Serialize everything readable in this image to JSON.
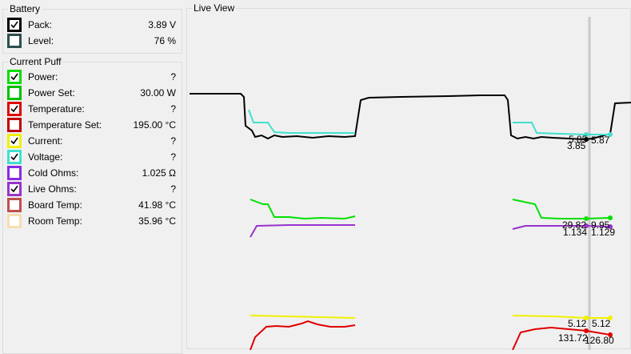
{
  "battery": {
    "title": "Battery",
    "rows": [
      {
        "label": "Pack:",
        "value": "3.89 V",
        "color": "#000000",
        "checked": true
      },
      {
        "label": "Level:",
        "value": "76 %",
        "color": "#2f4f4f",
        "checked": false
      }
    ]
  },
  "current_puff": {
    "title": "Current Puff",
    "rows": [
      {
        "label": "Power:",
        "value": "?",
        "color": "#00e000",
        "checked": true
      },
      {
        "label": "Power Set:",
        "value": "30.00 W",
        "color": "#00c000",
        "checked": false
      },
      {
        "label": "Temperature:",
        "value": "?",
        "color": "#e00000",
        "checked": true
      },
      {
        "label": "Temperature Set:",
        "value": "195.00 °C",
        "color": "#c00000",
        "checked": false
      },
      {
        "label": "Current:",
        "value": "?",
        "color": "#f0f000",
        "checked": true
      },
      {
        "label": "Voltage:",
        "value": "?",
        "color": "#40e0d0",
        "checked": true
      },
      {
        "label": "Cold Ohms:",
        "value": "1.025 Ω",
        "color": "#8a2be2",
        "checked": false
      },
      {
        "label": "Live Ohms:",
        "value": "?",
        "color": "#9932cc",
        "checked": true
      },
      {
        "label": "Board Temp:",
        "value": "41.98 °C",
        "color": "#c0504d",
        "checked": false
      },
      {
        "label": "Room Temp:",
        "value": "35.96 °C",
        "color": "#f5deb3",
        "checked": false
      }
    ]
  },
  "live_view": {
    "title": "Live View",
    "labels": [
      "5.85",
      "5.87",
      "3.85",
      "29.82",
      "9.95",
      "1.134",
      "1.129",
      "5.12",
      "5.12",
      "131.72",
      "126.80"
    ]
  }
}
